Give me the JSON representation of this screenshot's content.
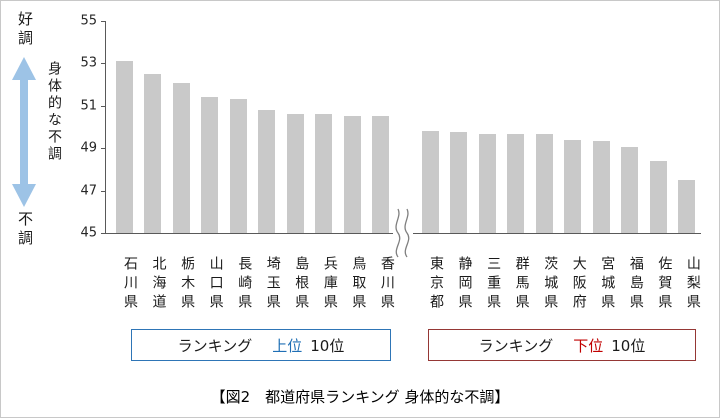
{
  "chart_data": {
    "type": "bar",
    "ylim": [
      45,
      55
    ],
    "yticks": [
      55,
      53,
      51,
      49,
      47,
      45
    ],
    "bar_color": "#c9c9c9",
    "grid": false,
    "axis_break_between_groups": true,
    "groups": [
      {
        "name": "top10",
        "categories": [
          "石川県",
          "北海道",
          "栃木県",
          "山口県",
          "長崎県",
          "埼玉県",
          "島根県",
          "兵庫県",
          "鳥取県",
          "香川県"
        ],
        "values": [
          53.1,
          52.5,
          52.1,
          51.4,
          51.3,
          50.8,
          50.6,
          50.6,
          50.5,
          50.5
        ]
      },
      {
        "name": "bottom10",
        "categories": [
          "東京都",
          "静岡県",
          "三重県",
          "群馬県",
          "茨城県",
          "大阪府",
          "宮城県",
          "福島県",
          "佐賀県",
          "山梨県"
        ],
        "values": [
          49.8,
          49.75,
          49.65,
          49.65,
          49.65,
          49.4,
          49.35,
          49.05,
          48.4,
          47.5
        ]
      }
    ]
  },
  "annotations": {
    "top_label": "好調",
    "bottom_label": "不調",
    "arrow_label": "身体的な不調",
    "arrow_color": "#9dc3e6"
  },
  "legends": [
    {
      "prefix": "ランキング",
      "highlight": "上位",
      "suffix": "10位",
      "highlight_color": "#1f6fb5",
      "border_color": "#2e75b6"
    },
    {
      "prefix": "ランキング",
      "highlight": "下位",
      "suffix": "10位",
      "highlight_color": "#c00000",
      "border_color": "#953735"
    }
  ],
  "caption": "【図2　都道府県ランキング 身体的な不調】"
}
